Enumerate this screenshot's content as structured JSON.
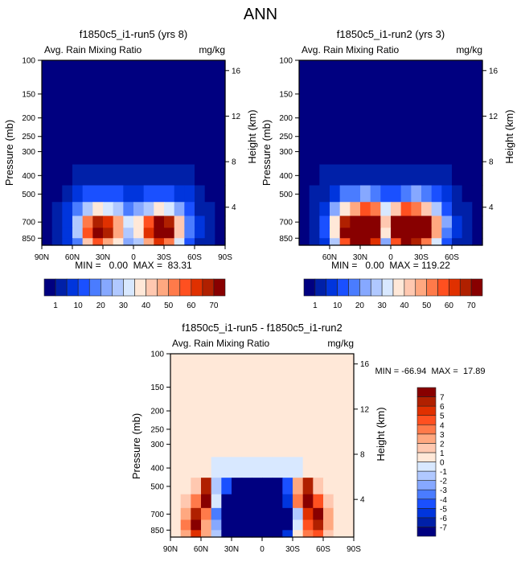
{
  "main_title": "ANN",
  "palette": [
    "#000080",
    "#0020a8",
    "#0035dd",
    "#1a50ff",
    "#4a7cff",
    "#86a8ff",
    "#b0c8ff",
    "#d8e8ff",
    "#ffe8d8",
    "#ffc8b0",
    "#ffa880",
    "#ff7a4a",
    "#ff5020",
    "#e03000",
    "#b02000",
    "#880000"
  ],
  "chart_data": [
    {
      "type": "heatmap",
      "title": "f1850c5_i1-run5 (yrs 8)",
      "left_subtitle": "Avg. Rain Mixing Ratio",
      "right_subtitle": "mg/kg",
      "ylabel": "Pressure (mb)",
      "ylabel_right": "Height (km)",
      "stats": "MIN =   0.00  MAX =  83.31",
      "xticks": [
        "90N",
        "60N",
        "30N",
        "0",
        "30S",
        "60S",
        "90S"
      ],
      "xtick_values": [
        90,
        60,
        30,
        0,
        -30,
        -60,
        -90
      ],
      "yticks": [
        100,
        150,
        200,
        250,
        300,
        400,
        500,
        700,
        850
      ],
      "height_ticks": [
        16,
        12,
        8,
        4
      ],
      "levels": [
        1,
        5,
        10,
        15,
        20,
        25,
        30,
        35,
        40,
        45,
        50,
        55,
        60,
        65,
        70
      ],
      "level_labels": [
        "1",
        "10",
        "20",
        "30",
        "40",
        "50",
        "60",
        "70"
      ],
      "lat": [
        85,
        75,
        65,
        55,
        45,
        35,
        25,
        15,
        5,
        -5,
        -15,
        -25,
        -35,
        -45,
        -55,
        -65,
        -75,
        -85
      ],
      "p_edges": [
        100,
        350,
        450,
        550,
        650,
        750,
        850,
        925
      ],
      "values": [
        [
          0,
          0,
          0,
          0,
          0,
          0,
          0,
          0,
          0,
          0,
          0,
          0,
          0,
          0,
          0,
          0,
          0,
          0
        ],
        [
          0,
          0,
          0,
          2,
          2,
          2,
          2,
          2,
          2,
          2,
          2,
          2,
          2,
          2,
          2,
          0,
          0,
          0
        ],
        [
          0,
          0,
          2,
          6,
          10,
          12,
          10,
          10,
          8,
          8,
          10,
          12,
          10,
          8,
          5,
          2,
          0,
          0
        ],
        [
          0,
          1,
          6,
          15,
          25,
          35,
          30,
          25,
          18,
          20,
          28,
          35,
          30,
          20,
          10,
          4,
          1,
          0
        ],
        [
          0,
          2,
          8,
          25,
          50,
          65,
          60,
          45,
          30,
          35,
          55,
          72,
          65,
          40,
          18,
          6,
          2,
          0
        ],
        [
          0,
          2,
          8,
          25,
          55,
          75,
          65,
          45,
          28,
          35,
          60,
          80,
          70,
          40,
          15,
          6,
          2,
          0
        ],
        [
          0,
          1,
          5,
          18,
          40,
          55,
          45,
          35,
          20,
          25,
          45,
          60,
          50,
          30,
          10,
          4,
          1,
          0
        ]
      ]
    },
    {
      "type": "heatmap",
      "title": "f1850c5_i1-run2 (yrs 3)",
      "left_subtitle": "Avg. Rain Mixing Ratio",
      "right_subtitle": "mg/kg",
      "ylabel": "Pressure (mb)",
      "ylabel_right": "Height (km)",
      "stats": "MIN =   0.00  MAX = 119.22",
      "xticks": [
        "60N",
        "30N",
        "0",
        "30S",
        "60S"
      ],
      "xtick_values": [
        60,
        30,
        0,
        -30,
        -60
      ],
      "yticks": [
        100,
        150,
        200,
        250,
        300,
        400,
        500,
        700,
        850
      ],
      "height_ticks": [
        16,
        12,
        8,
        4
      ],
      "levels": [
        1,
        5,
        10,
        15,
        20,
        25,
        30,
        35,
        40,
        45,
        50,
        55,
        60,
        65,
        70
      ],
      "level_labels": [
        "1",
        "10",
        "20",
        "30",
        "40",
        "50",
        "60",
        "70"
      ],
      "lat": [
        85,
        75,
        65,
        55,
        45,
        35,
        25,
        15,
        5,
        -5,
        -15,
        -25,
        -35,
        -45,
        -55,
        -65,
        -75,
        -85
      ],
      "p_edges": [
        100,
        350,
        450,
        550,
        650,
        750,
        850,
        925
      ],
      "values": [
        [
          0,
          0,
          0,
          0,
          0,
          0,
          0,
          0,
          0,
          0,
          0,
          0,
          0,
          0,
          0,
          0,
          0,
          0
        ],
        [
          0,
          0,
          1,
          2,
          2,
          3,
          3,
          2,
          2,
          2,
          2,
          3,
          3,
          2,
          1,
          0,
          0,
          0
        ],
        [
          0,
          1,
          3,
          8,
          15,
          18,
          20,
          18,
          12,
          12,
          18,
          20,
          15,
          10,
          5,
          2,
          0,
          0
        ],
        [
          0,
          2,
          8,
          20,
          35,
          45,
          55,
          50,
          30,
          40,
          55,
          50,
          40,
          25,
          12,
          4,
          1,
          0
        ],
        [
          0,
          3,
          12,
          35,
          65,
          80,
          100,
          90,
          40,
          80,
          100,
          85,
          70,
          45,
          20,
          8,
          2,
          0
        ],
        [
          0,
          3,
          12,
          35,
          70,
          85,
          95,
          85,
          35,
          75,
          95,
          85,
          70,
          45,
          18,
          6,
          2,
          0
        ],
        [
          0,
          2,
          8,
          25,
          55,
          70,
          75,
          60,
          20,
          55,
          75,
          65,
          50,
          30,
          12,
          4,
          1,
          0
        ]
      ]
    },
    {
      "type": "heatmap",
      "title": "f1850c5_i1-run5 - f1850c5_i1-run2",
      "left_subtitle": "Avg. Rain Mixing Ratio",
      "right_subtitle": "mg/kg",
      "ylabel": "Pressure (mb)",
      "ylabel_right": "Height (km)",
      "stats": "MIN = -66.94  MAX =  17.89",
      "xticks": [
        "90N",
        "60N",
        "30N",
        "0",
        "30S",
        "60S",
        "90S"
      ],
      "xtick_values": [
        90,
        60,
        30,
        0,
        -30,
        -60,
        -90
      ],
      "yticks": [
        100,
        150,
        200,
        250,
        300,
        400,
        500,
        700,
        850
      ],
      "height_ticks": [
        16,
        12,
        8,
        4
      ],
      "levels": [
        -7,
        -6,
        -5,
        -4,
        -3,
        -2,
        -1,
        0,
        1,
        2,
        3,
        4,
        5,
        6,
        7
      ],
      "level_labels": [
        "-7",
        "-6",
        "-5",
        "-4",
        "-3",
        "-2",
        "-1",
        "0",
        "1",
        "2",
        "3",
        "4",
        "5",
        "6",
        "7"
      ],
      "lat": [
        85,
        75,
        65,
        55,
        45,
        35,
        25,
        15,
        5,
        -5,
        -15,
        -25,
        -35,
        -45,
        -55,
        -65,
        -75,
        -85
      ],
      "p_edges": [
        100,
        350,
        450,
        550,
        650,
        750,
        850,
        925
      ],
      "values": [
        [
          0.5,
          0.5,
          0.5,
          0.5,
          0.5,
          0.5,
          0.5,
          0.5,
          0.5,
          0.5,
          0.5,
          0.5,
          0.5,
          0.5,
          0.5,
          0.5,
          0.5,
          0.5
        ],
        [
          0.5,
          0.5,
          0.5,
          0.5,
          -0.5,
          -1,
          -1,
          -1,
          -0.5,
          -0.5,
          -1,
          -1,
          -0.5,
          0.5,
          0.5,
          0.5,
          0.5,
          0.5
        ],
        [
          0.5,
          0.5,
          1,
          6,
          -2,
          -5,
          -8,
          -8,
          -8,
          -8,
          -8,
          -5,
          2,
          6,
          1,
          0.5,
          0.5,
          0.5
        ],
        [
          0.5,
          1,
          3,
          7,
          -1,
          -8,
          -8,
          -8,
          -8,
          -8,
          -8,
          -6,
          3,
          7,
          4,
          1,
          0.5,
          0.5
        ],
        [
          0.5,
          2,
          6,
          3,
          -4,
          -8,
          -8,
          -8,
          -8,
          -8,
          -8,
          -8,
          -2,
          5,
          7,
          2,
          0.5,
          0.5
        ],
        [
          0.5,
          3,
          7,
          2,
          -3,
          -8,
          -8,
          -8,
          -8,
          -8,
          -8,
          -8,
          -1,
          4,
          6,
          2,
          0.5,
          0.5
        ],
        [
          0.5,
          2,
          5,
          2,
          -2,
          -8,
          -8,
          -8,
          -8,
          -8,
          -8,
          -6,
          0.5,
          3,
          4,
          1,
          0.5,
          0.5
        ]
      ]
    }
  ]
}
